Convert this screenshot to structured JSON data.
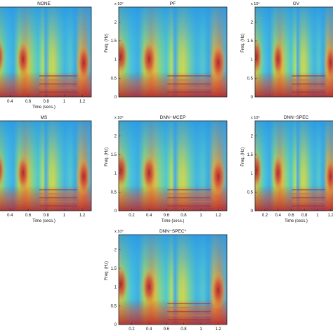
{
  "chart_data": [
    {
      "type": "heatmap",
      "title": "NONE",
      "xlabel": "Time (secs.)",
      "ylabel": "",
      "xticks": [
        "0.4",
        "0.6",
        "0.8",
        "1",
        "1.2"
      ],
      "xtick_values": [
        0.4,
        0.6,
        0.8,
        1.0,
        1.2
      ],
      "xlim": [
        0.25,
        1.3
      ],
      "yticks": [],
      "ylim": [
        0,
        2.4
      ],
      "y_exponent": "",
      "colormap": "jet"
    },
    {
      "type": "heatmap",
      "title": "PF",
      "xlabel": "",
      "ylabel": "Freq. (Hz)",
      "xticks": [],
      "xtick_values": [],
      "xlim": [
        0.05,
        1.3
      ],
      "yticks": [
        "0",
        "0.5",
        "1",
        "1.5",
        "2"
      ],
      "ytick_values": [
        0,
        0.5,
        1.0,
        1.5,
        2.0
      ],
      "ylim": [
        0,
        2.4
      ],
      "y_exponent": "x 10⁴",
      "colormap": "jet"
    },
    {
      "type": "heatmap",
      "title": "GV",
      "xlabel": "",
      "ylabel": "Freq. (Hz)",
      "xticks": [],
      "xtick_values": [],
      "xlim": [
        0.05,
        1.3
      ],
      "yticks": [
        "0",
        "0.5",
        "1",
        "1.5",
        "2"
      ],
      "ytick_values": [
        0,
        0.5,
        1.0,
        1.5,
        2.0
      ],
      "ylim": [
        0,
        2.4
      ],
      "y_exponent": "x 10⁴",
      "colormap": "jet"
    },
    {
      "type": "heatmap",
      "title": "MS",
      "xlabel": "Time (secs.)",
      "ylabel": "",
      "xticks": [
        "0.4",
        "0.6",
        "0.8",
        "1",
        "1.2"
      ],
      "xtick_values": [
        0.4,
        0.6,
        0.8,
        1.0,
        1.2
      ],
      "xlim": [
        0.25,
        1.3
      ],
      "yticks": [],
      "ylim": [
        0,
        2.4
      ],
      "y_exponent": "",
      "colormap": "jet"
    },
    {
      "type": "heatmap",
      "title": "DNN−MCEP",
      "xlabel": "Time (secs.)",
      "ylabel": "Freq. (Hz)",
      "xticks": [
        "0.2",
        "0.4",
        "0.6",
        "0.8",
        "1",
        "1.2"
      ],
      "xtick_values": [
        0.2,
        0.4,
        0.6,
        0.8,
        1.0,
        1.2
      ],
      "xlim": [
        0.05,
        1.3
      ],
      "yticks": [
        "0",
        "0.5",
        "1",
        "1.5",
        "2"
      ],
      "ytick_values": [
        0,
        0.5,
        1.0,
        1.5,
        2.0
      ],
      "ylim": [
        0,
        2.4
      ],
      "y_exponent": "x 10⁴",
      "colormap": "jet"
    },
    {
      "type": "heatmap",
      "title": "DNN−SPEC",
      "xlabel": "Time (secs.)",
      "ylabel": "Freq. (Hz)",
      "xticks": [
        "0.2",
        "0.4",
        "0.6",
        "0.8",
        "1",
        "1.2"
      ],
      "xtick_values": [
        0.2,
        0.4,
        0.6,
        0.8,
        1.0,
        1.2
      ],
      "xlim": [
        0.05,
        1.3
      ],
      "yticks": [
        "0",
        "0.5",
        "1",
        "1.5",
        "2"
      ],
      "ytick_values": [
        0,
        0.5,
        1.0,
        1.5,
        2.0
      ],
      "ylim": [
        0,
        2.4
      ],
      "y_exponent": "x 10⁴",
      "colormap": "jet"
    },
    {
      "type": "heatmap",
      "title": "DNN−SPEC*",
      "xlabel": "Time (secs.)",
      "ylabel": "Freq. (Hz)",
      "xticks": [
        "0.2",
        "0.4",
        "0.6",
        "0.8",
        "1",
        "1.2"
      ],
      "xtick_values": [
        0.2,
        0.4,
        0.6,
        0.8,
        1.0,
        1.2
      ],
      "xlim": [
        0.05,
        1.3
      ],
      "yticks": [
        "0",
        "0.5",
        "1",
        "1.5",
        "2"
      ],
      "ytick_values": [
        0,
        0.5,
        1.0,
        1.5,
        2.0
      ],
      "ylim": [
        0,
        2.4
      ],
      "y_exponent": "x 10⁴",
      "colormap": "jet"
    }
  ]
}
